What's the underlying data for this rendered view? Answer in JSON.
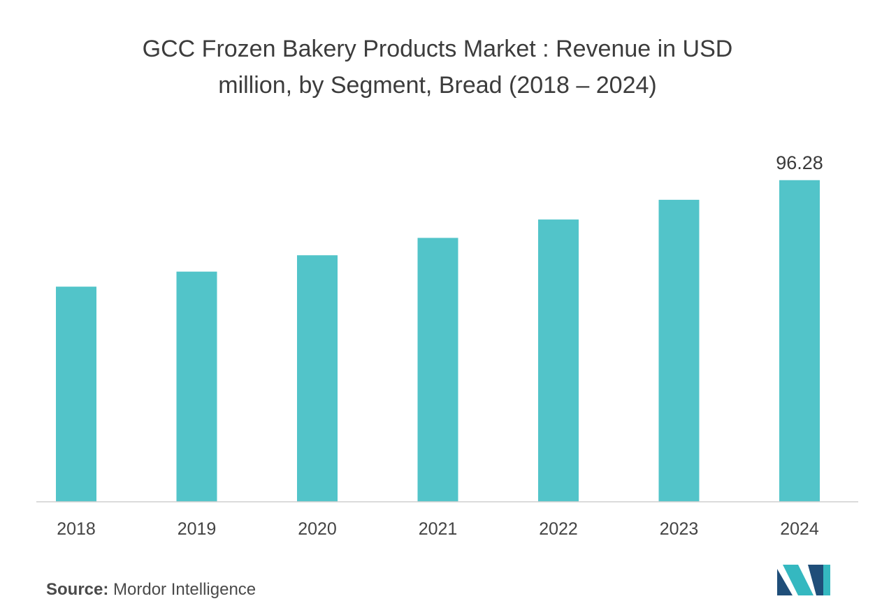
{
  "chart_data": {
    "type": "bar",
    "title_line1": "GCC Frozen Bakery Products Market : Revenue in USD",
    "title_line2": "million, by Segment, Bread (2018 – 2024)",
    "categories": [
      "2018",
      "2019",
      "2020",
      "2021",
      "2022",
      "2023",
      "2024"
    ],
    "values": [
      64.4,
      68.9,
      73.8,
      79.0,
      84.5,
      90.4,
      96.28
    ],
    "data_labels": [
      "",
      "",
      "",
      "",
      "",
      "",
      "96.28"
    ],
    "xlabel": "",
    "ylabel": "",
    "ylim": [
      0,
      100
    ],
    "grid": false,
    "bar_color": "#52c4c9"
  },
  "footer": {
    "source_label": "Source:",
    "source_text": " Mordor Intelligence"
  },
  "colors": {
    "logo_dark": "#1f4e79",
    "logo_light": "#35b8c0"
  }
}
